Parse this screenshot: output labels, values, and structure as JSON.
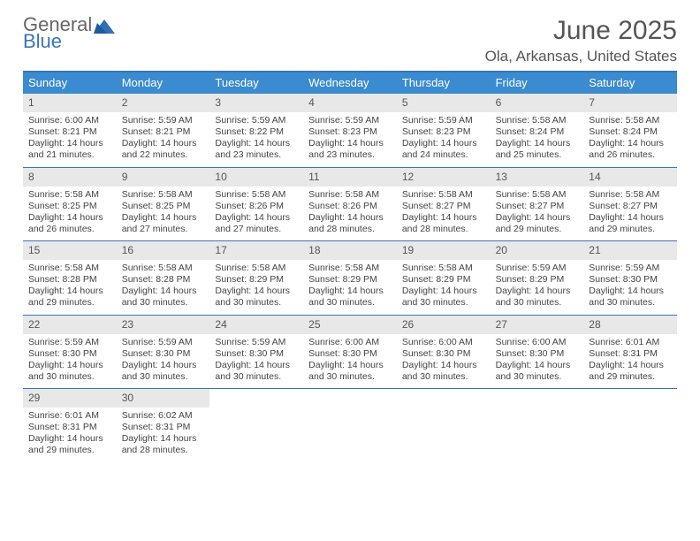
{
  "logo": {
    "text_top": "General",
    "text_bottom": "Blue"
  },
  "header": {
    "title": "June 2025",
    "location": "Ola, Arkansas, United States"
  },
  "colors": {
    "week_header_bg": "#3a8bd0",
    "border": "#3a76b9",
    "daynum_bg": "#e8e8e8",
    "text": "#444444"
  },
  "weekday_labels": [
    "Sunday",
    "Monday",
    "Tuesday",
    "Wednesday",
    "Thursday",
    "Friday",
    "Saturday"
  ],
  "days": [
    {
      "n": "1",
      "sunrise": "6:00 AM",
      "sunset": "8:21 PM",
      "dl": "14 hours and 21 minutes."
    },
    {
      "n": "2",
      "sunrise": "5:59 AM",
      "sunset": "8:21 PM",
      "dl": "14 hours and 22 minutes."
    },
    {
      "n": "3",
      "sunrise": "5:59 AM",
      "sunset": "8:22 PM",
      "dl": "14 hours and 23 minutes."
    },
    {
      "n": "4",
      "sunrise": "5:59 AM",
      "sunset": "8:23 PM",
      "dl": "14 hours and 23 minutes."
    },
    {
      "n": "5",
      "sunrise": "5:59 AM",
      "sunset": "8:23 PM",
      "dl": "14 hours and 24 minutes."
    },
    {
      "n": "6",
      "sunrise": "5:58 AM",
      "sunset": "8:24 PM",
      "dl": "14 hours and 25 minutes."
    },
    {
      "n": "7",
      "sunrise": "5:58 AM",
      "sunset": "8:24 PM",
      "dl": "14 hours and 26 minutes."
    },
    {
      "n": "8",
      "sunrise": "5:58 AM",
      "sunset": "8:25 PM",
      "dl": "14 hours and 26 minutes."
    },
    {
      "n": "9",
      "sunrise": "5:58 AM",
      "sunset": "8:25 PM",
      "dl": "14 hours and 27 minutes."
    },
    {
      "n": "10",
      "sunrise": "5:58 AM",
      "sunset": "8:26 PM",
      "dl": "14 hours and 27 minutes."
    },
    {
      "n": "11",
      "sunrise": "5:58 AM",
      "sunset": "8:26 PM",
      "dl": "14 hours and 28 minutes."
    },
    {
      "n": "12",
      "sunrise": "5:58 AM",
      "sunset": "8:27 PM",
      "dl": "14 hours and 28 minutes."
    },
    {
      "n": "13",
      "sunrise": "5:58 AM",
      "sunset": "8:27 PM",
      "dl": "14 hours and 29 minutes."
    },
    {
      "n": "14",
      "sunrise": "5:58 AM",
      "sunset": "8:27 PM",
      "dl": "14 hours and 29 minutes."
    },
    {
      "n": "15",
      "sunrise": "5:58 AM",
      "sunset": "8:28 PM",
      "dl": "14 hours and 29 minutes."
    },
    {
      "n": "16",
      "sunrise": "5:58 AM",
      "sunset": "8:28 PM",
      "dl": "14 hours and 30 minutes."
    },
    {
      "n": "17",
      "sunrise": "5:58 AM",
      "sunset": "8:29 PM",
      "dl": "14 hours and 30 minutes."
    },
    {
      "n": "18",
      "sunrise": "5:58 AM",
      "sunset": "8:29 PM",
      "dl": "14 hours and 30 minutes."
    },
    {
      "n": "19",
      "sunrise": "5:58 AM",
      "sunset": "8:29 PM",
      "dl": "14 hours and 30 minutes."
    },
    {
      "n": "20",
      "sunrise": "5:59 AM",
      "sunset": "8:29 PM",
      "dl": "14 hours and 30 minutes."
    },
    {
      "n": "21",
      "sunrise": "5:59 AM",
      "sunset": "8:30 PM",
      "dl": "14 hours and 30 minutes."
    },
    {
      "n": "22",
      "sunrise": "5:59 AM",
      "sunset": "8:30 PM",
      "dl": "14 hours and 30 minutes."
    },
    {
      "n": "23",
      "sunrise": "5:59 AM",
      "sunset": "8:30 PM",
      "dl": "14 hours and 30 minutes."
    },
    {
      "n": "24",
      "sunrise": "5:59 AM",
      "sunset": "8:30 PM",
      "dl": "14 hours and 30 minutes."
    },
    {
      "n": "25",
      "sunrise": "6:00 AM",
      "sunset": "8:30 PM",
      "dl": "14 hours and 30 minutes."
    },
    {
      "n": "26",
      "sunrise": "6:00 AM",
      "sunset": "8:30 PM",
      "dl": "14 hours and 30 minutes."
    },
    {
      "n": "27",
      "sunrise": "6:00 AM",
      "sunset": "8:30 PM",
      "dl": "14 hours and 30 minutes."
    },
    {
      "n": "28",
      "sunrise": "6:01 AM",
      "sunset": "8:31 PM",
      "dl": "14 hours and 29 minutes."
    },
    {
      "n": "29",
      "sunrise": "6:01 AM",
      "sunset": "8:31 PM",
      "dl": "14 hours and 29 minutes."
    },
    {
      "n": "30",
      "sunrise": "6:02 AM",
      "sunset": "8:31 PM",
      "dl": "14 hours and 28 minutes."
    }
  ],
  "labels": {
    "sunrise": "Sunrise: ",
    "sunset": "Sunset: ",
    "daylight": "Daylight: "
  },
  "layout": {
    "start_weekday": 0,
    "rows": 5,
    "cols": 7
  }
}
